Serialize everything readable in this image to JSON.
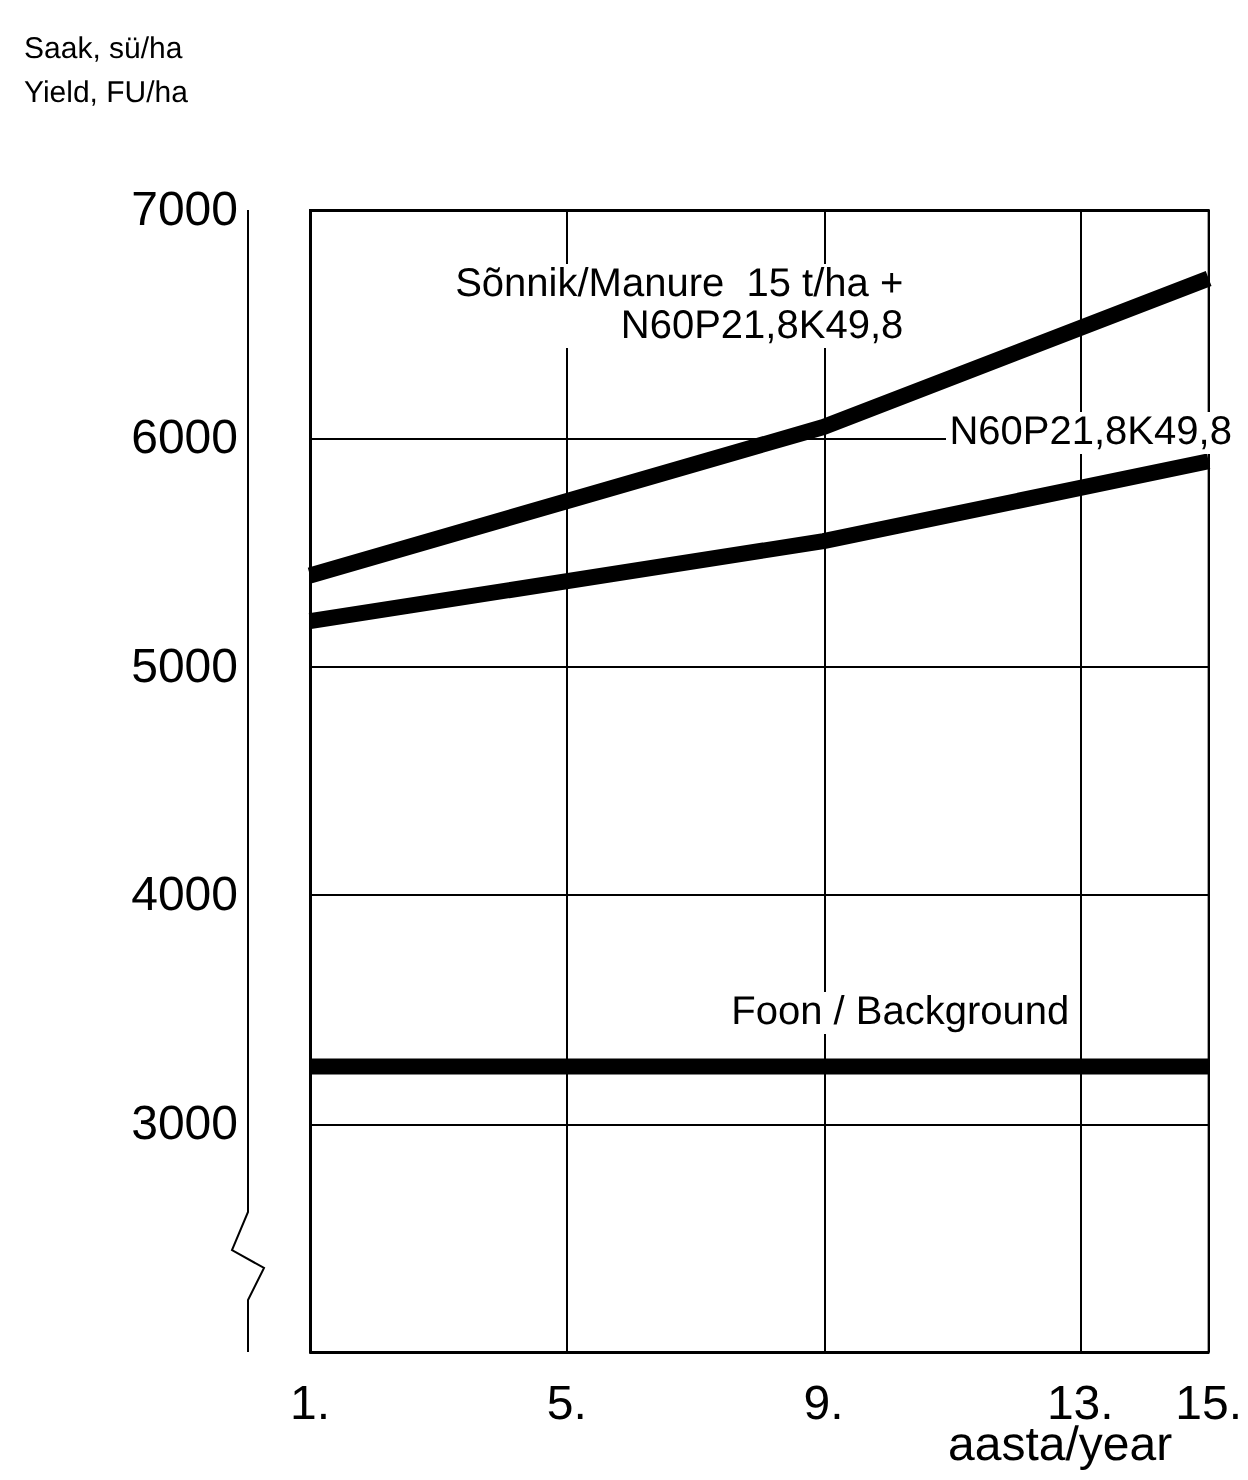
{
  "chart_data": {
    "type": "line",
    "ylabel": "Saak, sü/ha\nYield, FU/ha",
    "xlabel": "aasta/year",
    "x": [
      1,
      9,
      15
    ],
    "series": [
      {
        "name": "Sõnnik/Manure  15 t/ha +\nN60P21,8K49,8",
        "color": "#000000",
        "values": [
          5400,
          6050,
          6700
        ]
      },
      {
        "name": "N60P21,8K49,8",
        "color": "#000000",
        "values": [
          5200,
          5550,
          5900
        ]
      },
      {
        "name": "Foon / Background",
        "color": "#000000",
        "values": [
          3250,
          3250,
          3250
        ]
      }
    ],
    "xlim": [
      1,
      15
    ],
    "xticks": [
      {
        "value": 1,
        "label": "1."
      },
      {
        "value": 5,
        "label": "5."
      },
      {
        "value": 9,
        "label": "9."
      },
      {
        "value": 13,
        "label": "13."
      },
      {
        "value": 15,
        "label": "15."
      }
    ],
    "ylim": [
      2000,
      7000
    ],
    "yticks": [
      3000,
      4000,
      5000,
      6000,
      7000
    ],
    "grid": true,
    "legend": false,
    "marker": "none",
    "line_style": "solid"
  }
}
